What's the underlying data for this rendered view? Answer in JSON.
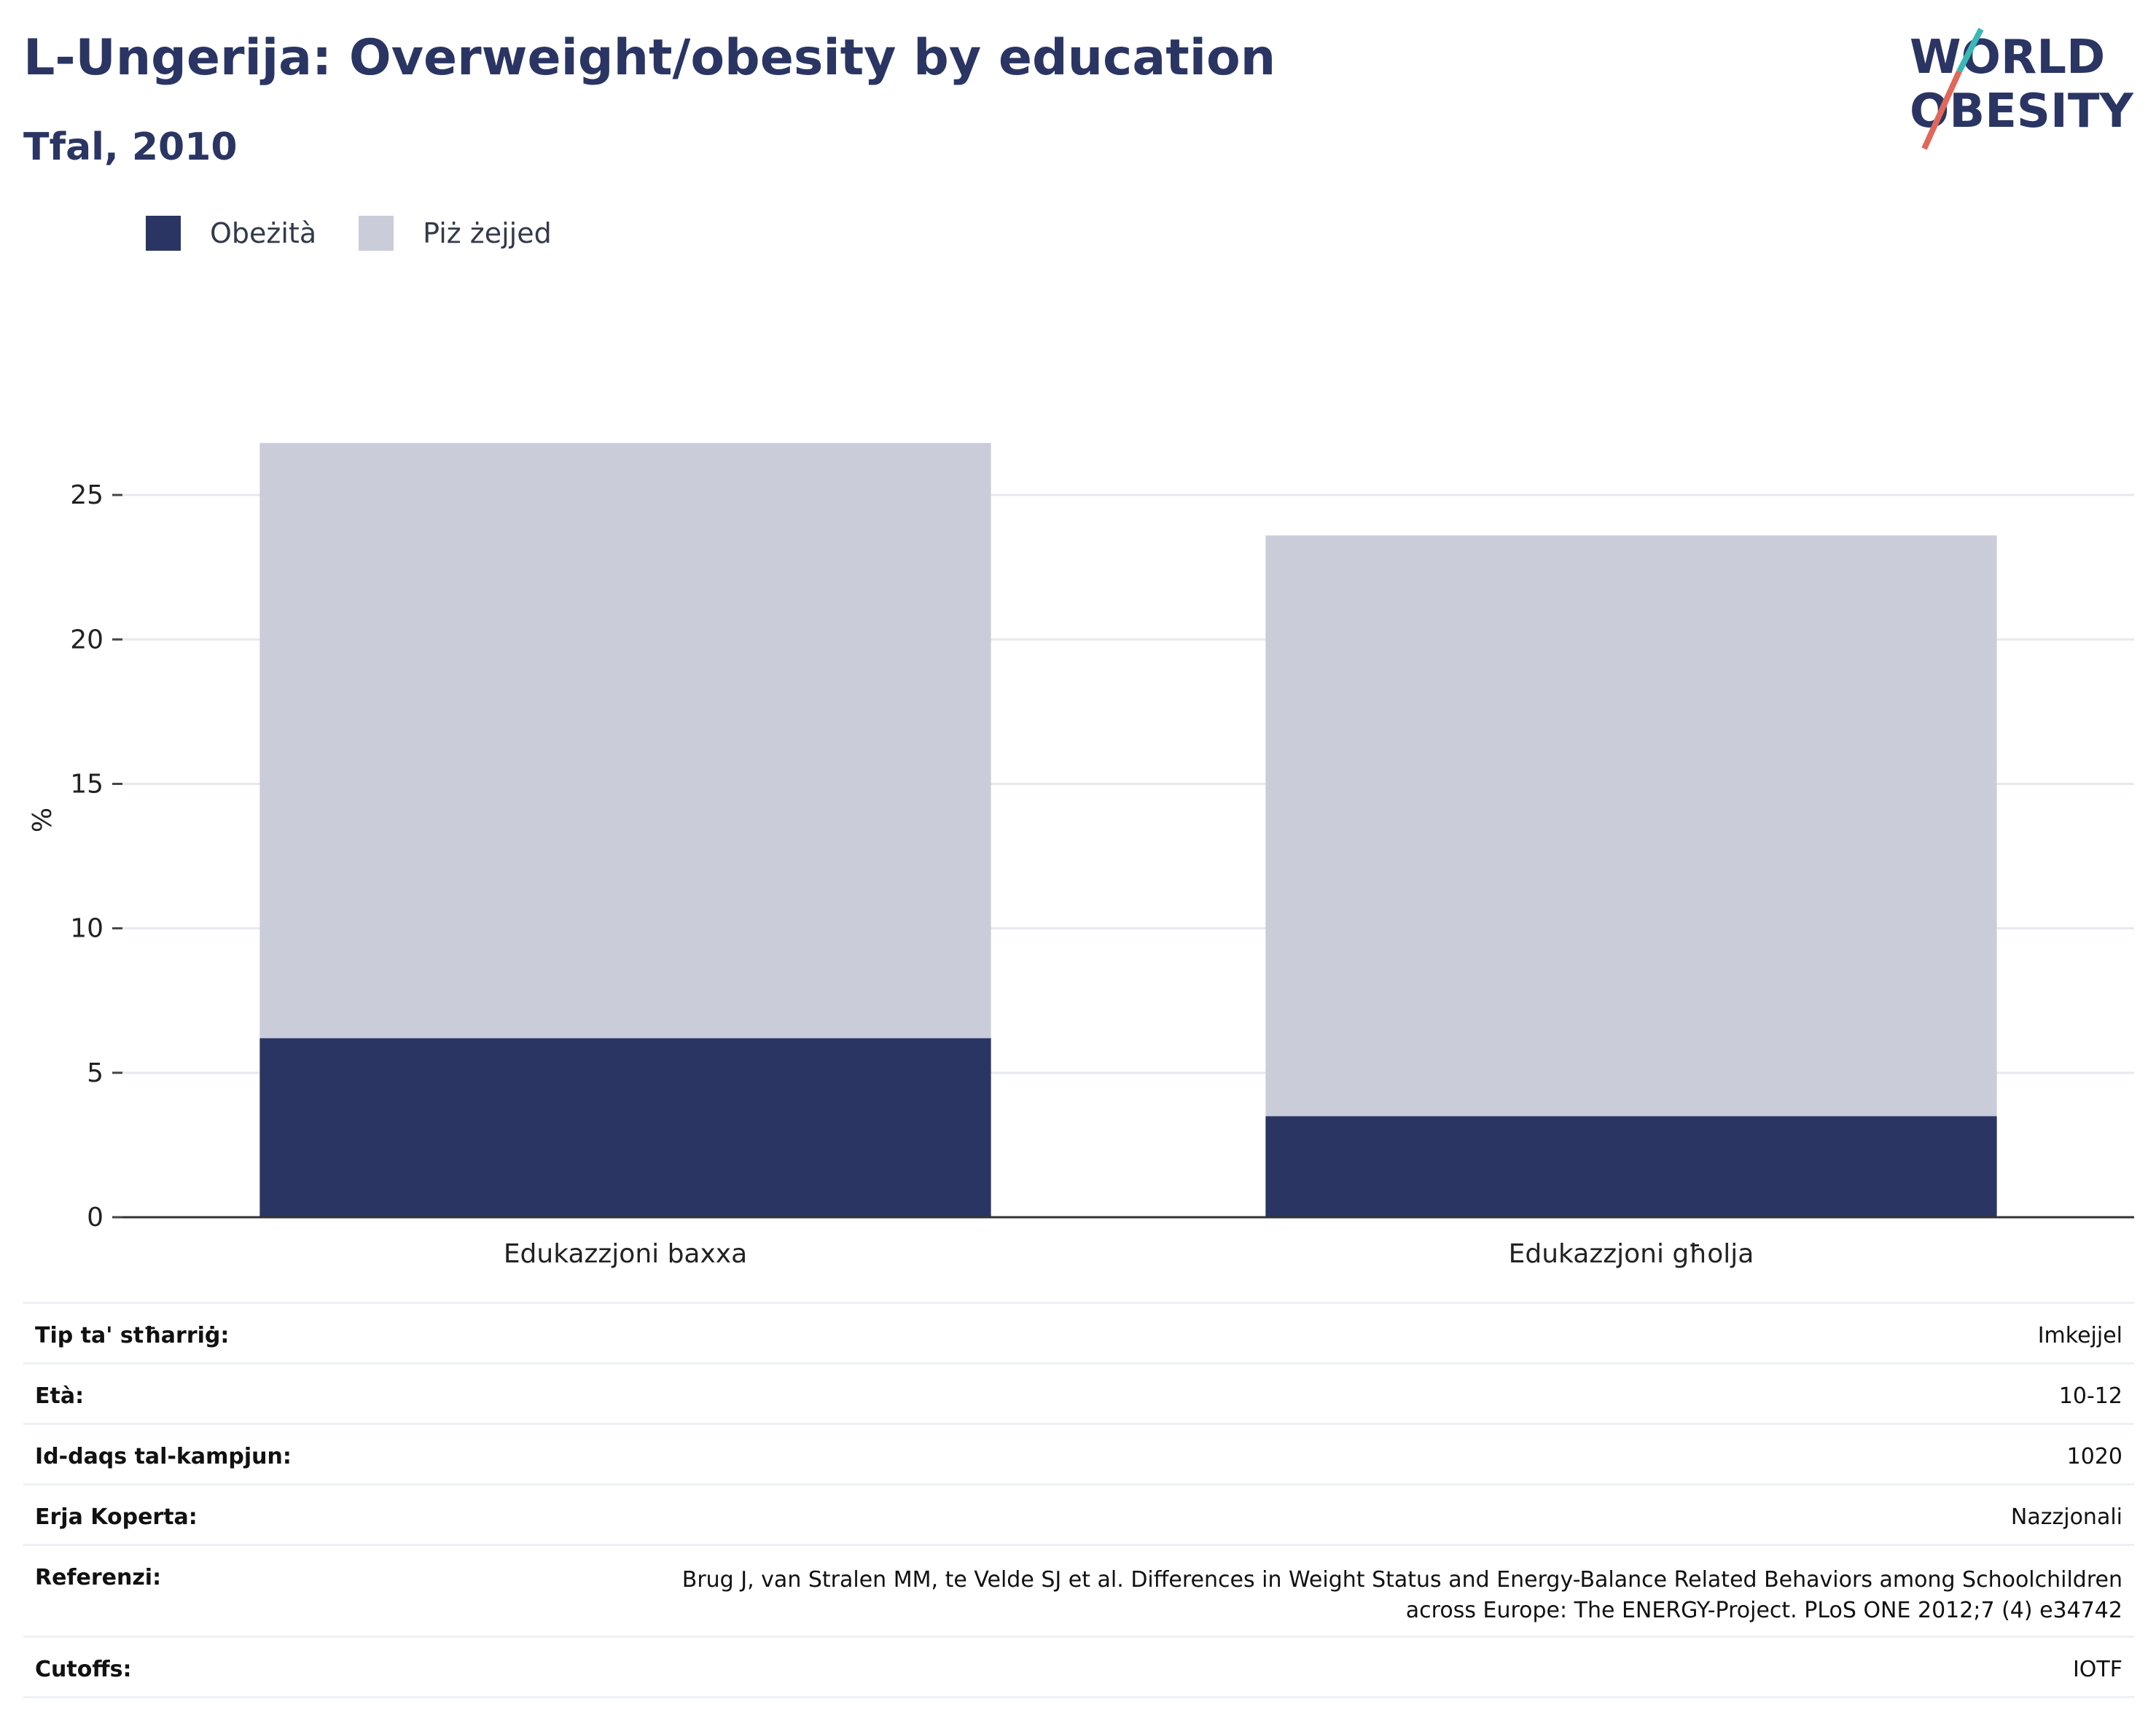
{
  "header": {
    "title": "L-Ungerija: Overweight/obesity by education",
    "subtitle": "Tfal, 2010"
  },
  "logo": {
    "line1": "WORLD",
    "line2": "OBESITY",
    "colors": {
      "text": "#2a3563",
      "slash_top": "#3ab8b8",
      "slash_bottom": "#e0675a"
    }
  },
  "legend": [
    {
      "label": "Obeżità",
      "color": "#2a3563"
    },
    {
      "label": "Piż żejjed",
      "color": "#cacdd9"
    }
  ],
  "chart_data": {
    "type": "bar",
    "stacked": true,
    "categories": [
      "Edukazzjoni baxxa",
      "Edukazzjoni għolja"
    ],
    "series": [
      {
        "name": "Obeżità",
        "color": "#2a3563",
        "values": [
          6.2,
          3.5
        ]
      },
      {
        "name": "Piż żejjed",
        "color": "#cacdd9",
        "values": [
          20.6,
          20.1
        ]
      }
    ],
    "ylabel": "%",
    "ylim": [
      0,
      27.5
    ],
    "yticks": [
      0,
      5,
      10,
      15,
      20,
      25
    ],
    "grid": true,
    "legend_position": "top-left"
  },
  "meta": [
    {
      "key": "Tip ta' stħarriġ:",
      "value": "Imkejjel"
    },
    {
      "key": "Età:",
      "value": "10-12"
    },
    {
      "key": "Id-daqs tal-kampjun:",
      "value": "1020"
    },
    {
      "key": "Erja Koperta:",
      "value": "Nazzjonali"
    },
    {
      "key": "Referenzi:",
      "value": [
        "Brug J, van Stralen MM, te Velde SJ et al. Differences in Weight Status and Energy-Balance Related Behaviors among Schoolchildren",
        "across Europe: The ENERGY-Project. PLoS ONE 2012;7 (4) e34742"
      ]
    },
    {
      "key": "Cutoffs:",
      "value": "IOTF"
    }
  ]
}
